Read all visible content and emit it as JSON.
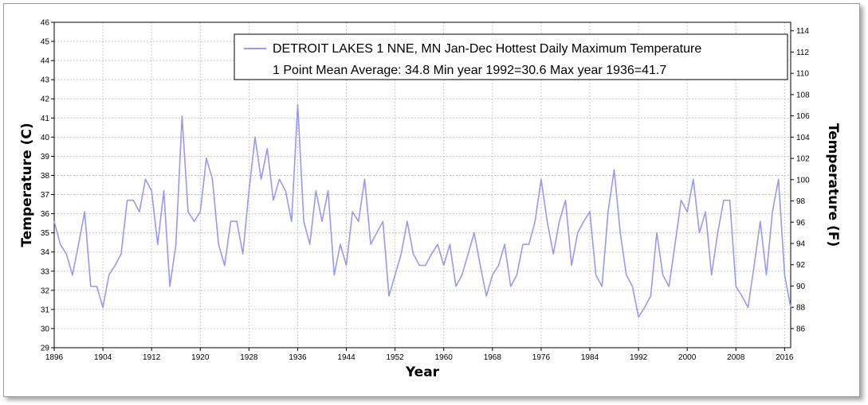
{
  "chart_data": {
    "type": "line",
    "title": "",
    "xlabel": "Year",
    "ylabel": "Temperature (C)",
    "ylabel_right": "Temperature (F)",
    "xlim": [
      1896,
      2017
    ],
    "ylim": [
      29,
      46
    ],
    "ylim_right_f": [
      84.2,
      114.8
    ],
    "x_ticks": [
      1896,
      1904,
      1912,
      1920,
      1928,
      1936,
      1944,
      1952,
      1960,
      1968,
      1976,
      1984,
      1992,
      2000,
      2008,
      2016
    ],
    "y_ticks": [
      29,
      30,
      31,
      32,
      33,
      34,
      35,
      36,
      37,
      38,
      39,
      40,
      41,
      42,
      43,
      44,
      45,
      46
    ],
    "y_ticks_right": [
      86,
      88,
      90,
      92,
      94,
      96,
      98,
      100,
      102,
      104,
      106,
      108,
      110,
      112,
      114
    ],
    "grid": true,
    "legend_position": "top-right",
    "legend": {
      "line1": "DETROIT LAKES 1 NNE, MN  Jan-Dec  Hottest Daily Maximum Temperature",
      "line2": "1 Point Mean  Average: 34.8  Min year 1992=30.6  Max year 1936=41.7"
    },
    "series": [
      {
        "name": "DETROIT LAKES 1 NNE, MN  Jan-Dec  Hottest Daily Maximum Temperature",
        "color": "#9999ee",
        "x": [
          1896,
          1897,
          1898,
          1899,
          1900,
          1901,
          1902,
          1903,
          1904,
          1905,
          1906,
          1907,
          1908,
          1909,
          1910,
          1911,
          1912,
          1913,
          1914,
          1915,
          1916,
          1917,
          1918,
          1919,
          1920,
          1921,
          1922,
          1923,
          1924,
          1925,
          1926,
          1927,
          1928,
          1929,
          1930,
          1931,
          1932,
          1933,
          1934,
          1935,
          1936,
          1937,
          1938,
          1939,
          1940,
          1941,
          1942,
          1943,
          1944,
          1945,
          1946,
          1947,
          1948,
          1949,
          1950,
          1951,
          1952,
          1953,
          1954,
          1955,
          1956,
          1957,
          1958,
          1959,
          1960,
          1961,
          1962,
          1963,
          1964,
          1965,
          1966,
          1967,
          1968,
          1969,
          1970,
          1971,
          1972,
          1973,
          1974,
          1975,
          1976,
          1977,
          1978,
          1979,
          1980,
          1981,
          1982,
          1983,
          1984,
          1985,
          1986,
          1987,
          1988,
          1989,
          1990,
          1991,
          1992,
          1993,
          1994,
          1995,
          1996,
          1997,
          1998,
          1999,
          2000,
          2001,
          2002,
          2003,
          2004,
          2005,
          2006,
          2007,
          2008,
          2009,
          2010,
          2011,
          2012,
          2013,
          2014,
          2015,
          2016,
          2017
        ],
        "values": [
          35.6,
          34.4,
          33.9,
          32.8,
          34.4,
          36.1,
          32.2,
          32.2,
          31.1,
          32.8,
          33.3,
          33.9,
          36.7,
          36.7,
          36.1,
          37.8,
          37.2,
          34.4,
          37.2,
          32.2,
          34.4,
          41.1,
          36.1,
          35.6,
          36.1,
          38.9,
          37.8,
          34.4,
          33.3,
          35.6,
          35.6,
          33.9,
          37.2,
          40.0,
          37.8,
          39.4,
          36.7,
          37.8,
          37.2,
          35.6,
          41.7,
          35.6,
          34.4,
          37.2,
          35.6,
          37.2,
          32.8,
          34.4,
          33.3,
          36.1,
          35.6,
          37.8,
          34.4,
          35.0,
          35.6,
          31.7,
          32.8,
          33.9,
          35.6,
          33.9,
          33.3,
          33.3,
          33.9,
          34.4,
          33.3,
          34.4,
          32.2,
          32.8,
          33.9,
          35.0,
          33.3,
          31.7,
          32.8,
          33.3,
          34.4,
          32.2,
          32.8,
          34.4,
          34.4,
          35.6,
          37.8,
          35.6,
          33.9,
          35.6,
          36.7,
          33.3,
          35.0,
          35.6,
          36.1,
          32.8,
          32.2,
          36.1,
          38.3,
          35.0,
          32.8,
          32.2,
          30.6,
          31.1,
          31.7,
          35.0,
          32.8,
          32.2,
          34.4,
          36.7,
          36.1,
          37.8,
          35.0,
          36.1,
          32.8,
          35.0,
          36.7,
          36.7,
          32.2,
          31.7,
          31.1,
          33.3,
          35.6,
          32.8,
          36.1,
          37.8,
          32.8,
          31.1
        ]
      }
    ]
  }
}
